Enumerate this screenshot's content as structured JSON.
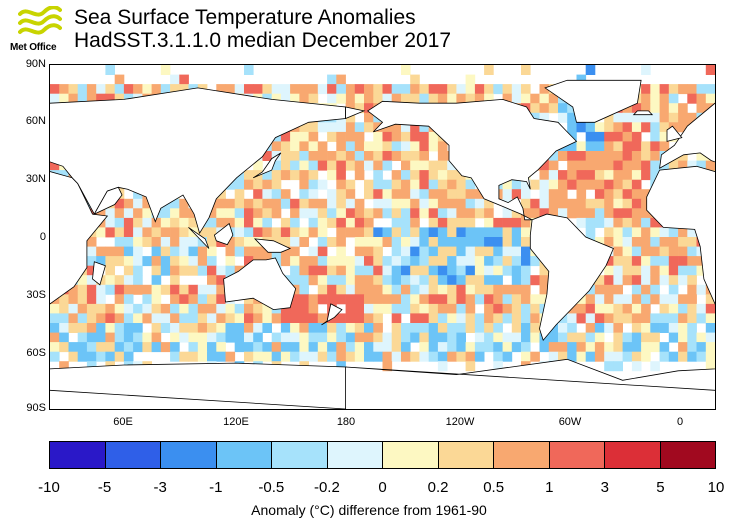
{
  "logo": {
    "text": "Met Office"
  },
  "title": {
    "line1": "Sea Surface Temperature Anomalies",
    "line2": "HadSST.3.1.1.0 median December 2017"
  },
  "map": {
    "lat_labels": [
      "90N",
      "60N",
      "30N",
      "0",
      "30S",
      "60S",
      "90S"
    ],
    "lon_labels": [
      "60E",
      "120E",
      "180",
      "120W",
      "60W",
      "0"
    ],
    "land_color": "#ffffff",
    "missing_color": "#ffffff"
  },
  "colorbar": {
    "labels": [
      "-10",
      "-5",
      "-3",
      "-1",
      "-0.5",
      "-0.2",
      "0",
      "0.2",
      "0.5",
      "1",
      "3",
      "5",
      "10"
    ],
    "colors": [
      "#2a18c8",
      "#2f5fe8",
      "#3b8ff0",
      "#6cc4f7",
      "#a6e2fb",
      "#def5fd",
      "#fdf8c2",
      "#fbd896",
      "#f8a870",
      "#f0685a",
      "#dc2f37",
      "#a1091f"
    ],
    "caption": "Anomaly (°C) difference from 1961-90"
  }
}
